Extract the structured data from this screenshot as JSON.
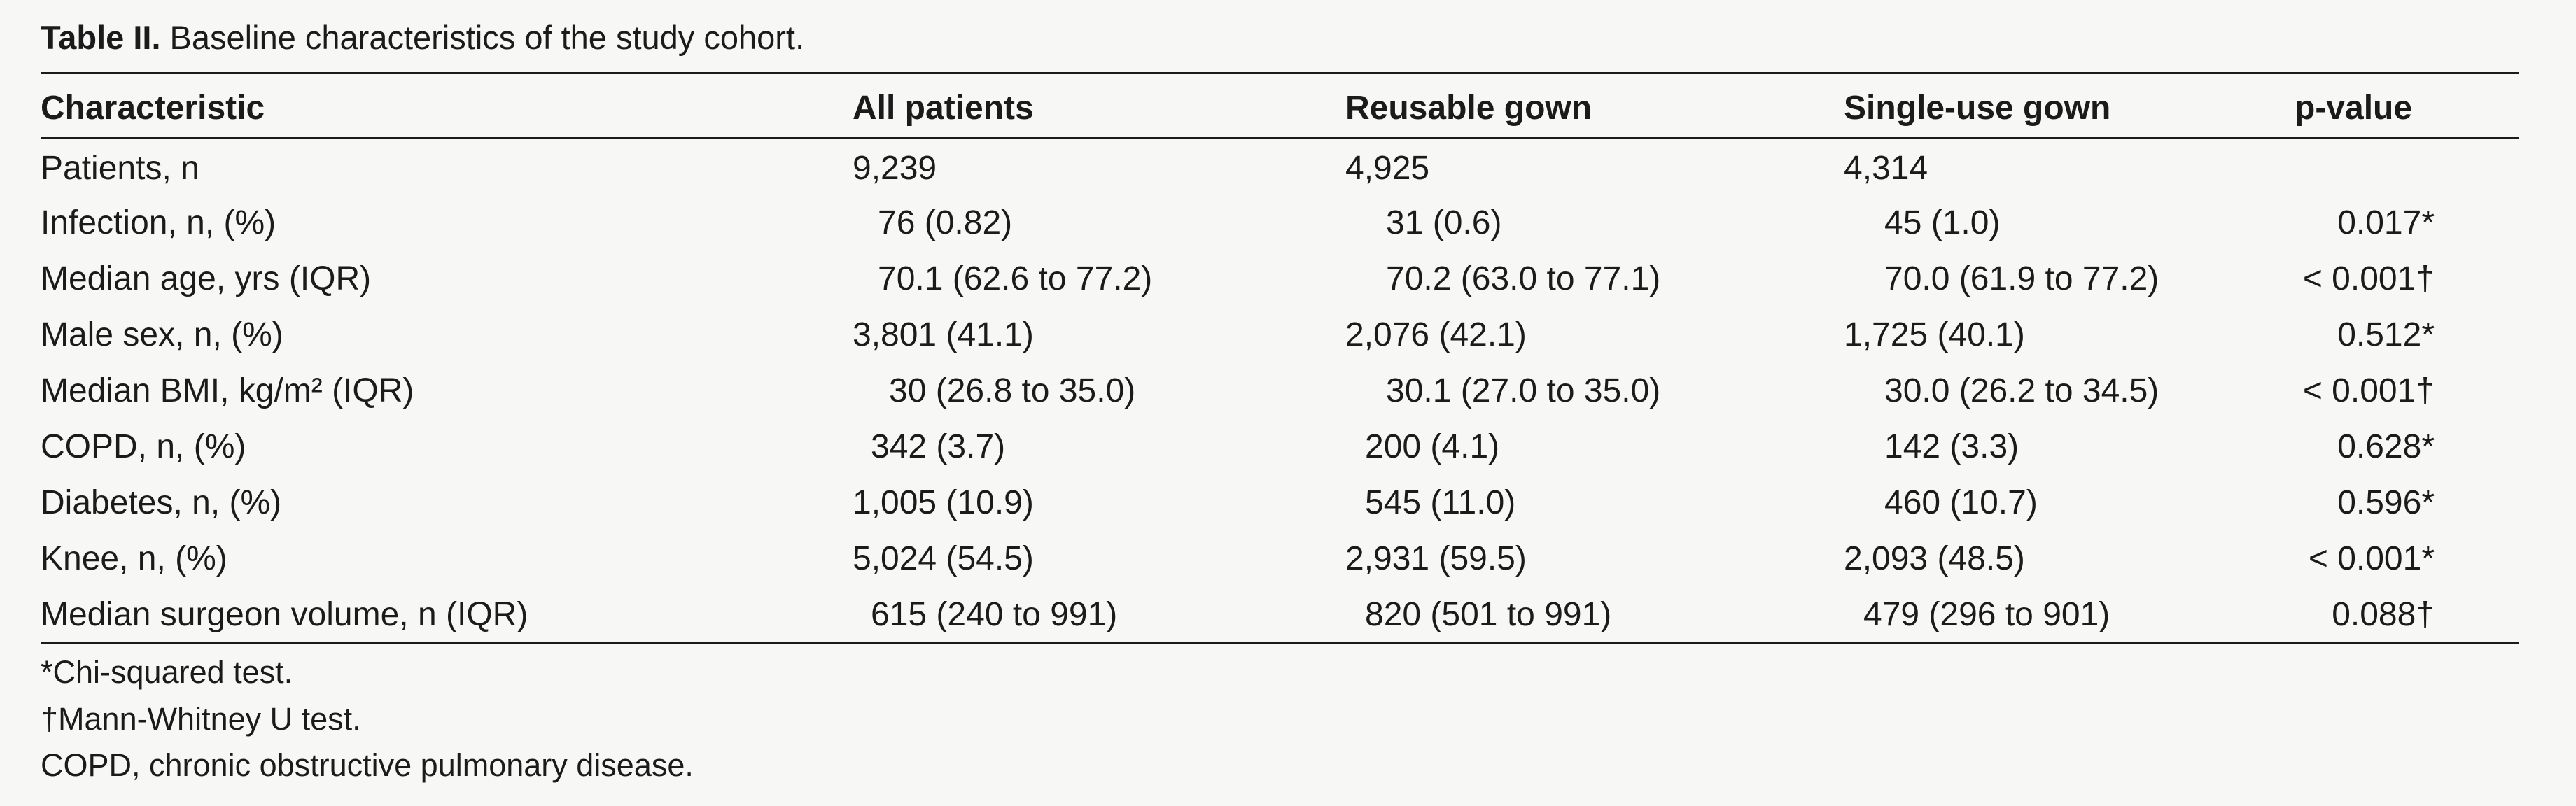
{
  "caption": {
    "label": "Table II.",
    "text": " Baseline characteristics of the study cohort."
  },
  "columns": [
    "Characteristic",
    "All patients",
    "Reusable gown",
    "Single-use gown",
    "p-value"
  ],
  "rows": [
    [
      "Patients, n",
      "9,239",
      "4,925",
      "4,314",
      ""
    ],
    [
      "Infection, n, (%)",
      "76 (0.82)",
      "31 (0.6)",
      "45 (1.0)",
      "0.017*"
    ],
    [
      "Median age, yrs (IQR)",
      "70.1 (62.6 to 77.2)",
      "70.2 (63.0 to 77.1)",
      "70.0 (61.9 to 77.2)",
      "< 0.001†"
    ],
    [
      "Male sex, n, (%)",
      "3,801 (41.1)",
      "2,076 (42.1)",
      "1,725 (40.1)",
      "0.512*"
    ],
    [
      "Median BMI, kg/m² (IQR)",
      "30 (26.8 to 35.0)",
      "30.1 (27.0 to 35.0)",
      "30.0 (26.2 to 34.5)",
      "< 0.001†"
    ],
    [
      "COPD, n, (%)",
      "342 (3.7)",
      "200 (4.1)",
      "142 (3.3)",
      "0.628*"
    ],
    [
      "Diabetes, n, (%)",
      "1,005 (10.9)",
      "545 (11.0)",
      "460 (10.7)",
      "0.596*"
    ],
    [
      "Knee, n, (%)",
      "5,024 (54.5)",
      "2,931 (59.5)",
      "2,093 (48.5)",
      "< 0.001*"
    ],
    [
      "Median surgeon volume, n (IQR)",
      "615 (240 to 991)",
      "820 (501 to 991)",
      "479 (296 to 901)",
      "0.088†"
    ]
  ],
  "footnotes": [
    "*Chi-squared test.",
    "†Mann-Whitney U test.",
    "COPD, chronic obstructive pulmonary disease."
  ]
}
